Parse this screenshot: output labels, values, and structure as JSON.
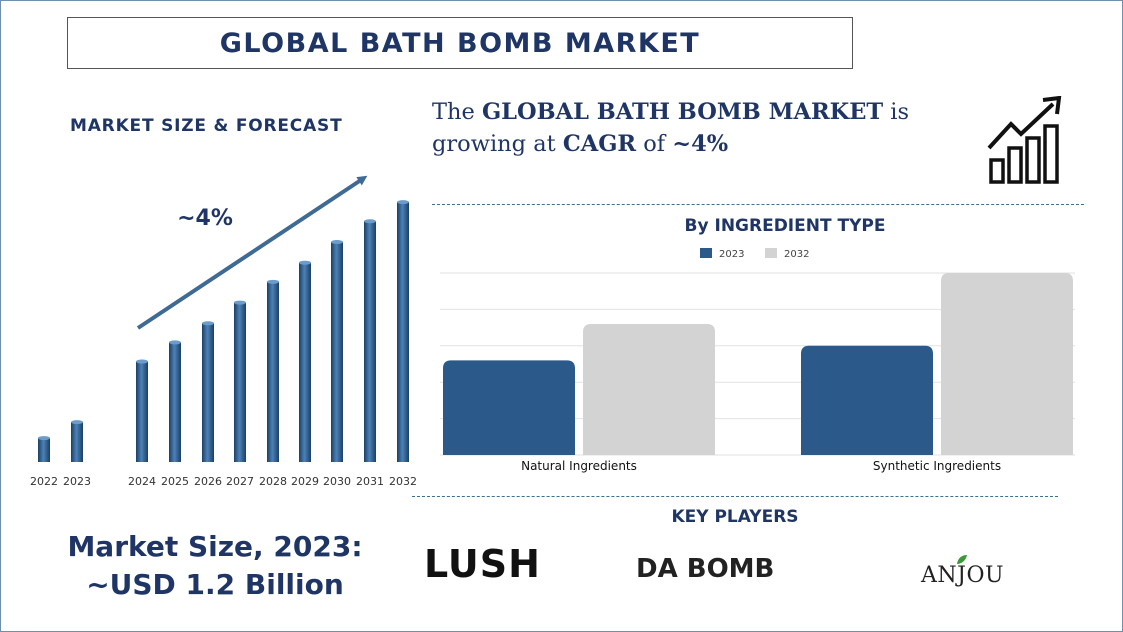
{
  "title": "GLOBAL BATH BOMB MARKET",
  "forecast_heading": "MARKET SIZE & FORECAST",
  "headline": {
    "part1": "The ",
    "bold1": "GLOBAL BATH BOMB MARKET",
    "part2": " is growing at ",
    "bold2": "CAGR",
    "part3": " of ",
    "bold3": "~4%"
  },
  "ingredient_heading": "By INGREDIENT TYPE",
  "key_players_heading": "KEY PLAYERS",
  "market_size": {
    "line1": "Market Size, 2023:",
    "line2": "~USD 1.2 Billion"
  },
  "players": [
    "LUSH",
    "DA BOMB",
    "ANJOU"
  ],
  "colors": {
    "navy": "#1f3565",
    "bar_blue": "#2b5a8a",
    "bar_grey": "#d3d3d3",
    "dash": "#3e6f8e"
  },
  "icons": [
    "growth-chart-icon"
  ],
  "chart_data": [
    {
      "type": "bar",
      "title": "MARKET SIZE & FORECAST",
      "categories": [
        "2022",
        "2023",
        "2024",
        "2025",
        "2026",
        "2027",
        "2028",
        "2029",
        "2030",
        "2031",
        "2032"
      ],
      "values": [
        1.1,
        1.2,
        1.58,
        1.7,
        1.82,
        1.95,
        2.08,
        2.2,
        2.33,
        2.46,
        2.58
      ],
      "annotation": "~4%",
      "ylim": [
        0.95,
        2.7
      ],
      "grid": false,
      "legend": "none"
    },
    {
      "type": "bar",
      "title": "By INGREDIENT TYPE",
      "categories": [
        "Natural Ingredients",
        "Synthetic Ingredients"
      ],
      "series": [
        {
          "name": "2023",
          "values": [
            0.52,
            0.6
          ]
        },
        {
          "name": "2032",
          "values": [
            0.72,
            1.0
          ]
        }
      ],
      "ylim": [
        0,
        1.0
      ],
      "grid": true,
      "legend": "top"
    }
  ]
}
